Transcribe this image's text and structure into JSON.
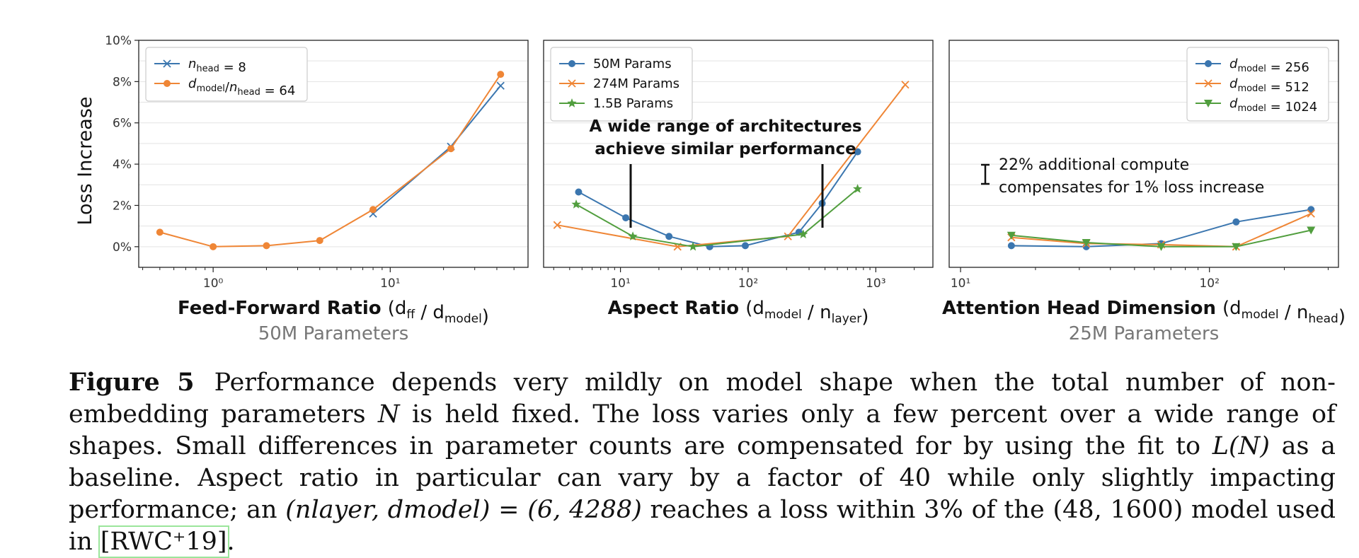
{
  "colors": {
    "blue": "#3b76af",
    "orange": "#ef8636",
    "green": "#519e3e",
    "grid": "#e3e3e3",
    "axis": "#222222"
  },
  "chart_data": [
    {
      "type": "line",
      "xscale": "log",
      "xlim": [
        0.38,
        60
      ],
      "ylim": [
        -1.0,
        10.0
      ],
      "xticks": [
        {
          "v": 1,
          "label": "10⁰"
        },
        {
          "v": 10,
          "label": "10¹"
        }
      ],
      "yticks": [
        {
          "v": 0,
          "label": "0%"
        },
        {
          "v": 2,
          "label": "2%"
        },
        {
          "v": 4,
          "label": "4%"
        },
        {
          "v": 6,
          "label": "6%"
        },
        {
          "v": 8,
          "label": "8%"
        },
        {
          "v": 10,
          "label": "10%"
        }
      ],
      "ylabel": "Loss Increase",
      "xlabel_bold": "Feed-Forward Ratio",
      "xlabel_rest": "(dff / dmodel)",
      "subtitle": "50M Parameters",
      "legend_position": "top-left",
      "series": [
        {
          "legend": "nhead = 8",
          "color": "#3b76af",
          "marker": "x",
          "x": [
            8,
            22,
            42
          ],
          "y": [
            1.6,
            4.85,
            7.8
          ]
        },
        {
          "legend": "dmodel/nhead = 64",
          "color": "#ef8636",
          "marker": "o",
          "x": [
            0.5,
            1,
            2,
            4,
            8,
            22,
            42
          ],
          "y": [
            0.7,
            0.0,
            0.05,
            0.3,
            1.8,
            4.75,
            8.35
          ]
        }
      ]
    },
    {
      "type": "line",
      "xscale": "log",
      "xlim": [
        2.5,
        2800
      ],
      "ylim": [
        -1.0,
        10.0
      ],
      "xticks": [
        {
          "v": 10,
          "label": "10¹"
        },
        {
          "v": 100,
          "label": "10²"
        },
        {
          "v": 1000,
          "label": "10³"
        }
      ],
      "xlabel_bold": "Aspect Ratio",
      "xlabel_rest": "(dmodel / nlayer)",
      "legend_position": "top-left",
      "annotation": [
        "A wide range of architectures",
        "achieve similar performance"
      ],
      "series": [
        {
          "legend": "50M Params",
          "color": "#3b76af",
          "marker": "o",
          "x": [
            4.7,
            11,
            24,
            50,
            95,
            250,
            380,
            720
          ],
          "y": [
            2.65,
            1.4,
            0.5,
            0.0,
            0.05,
            0.7,
            2.1,
            4.6
          ]
        },
        {
          "legend": "274M Params",
          "color": "#ef8636",
          "marker": "x",
          "x": [
            3.2,
            28,
            205,
            1700
          ],
          "y": [
            1.05,
            0.0,
            0.5,
            7.85
          ]
        },
        {
          "legend": "1.5B Params",
          "color": "#519e3e",
          "marker": "*",
          "x": [
            4.5,
            12.5,
            37,
            270,
            720
          ],
          "y": [
            2.05,
            0.5,
            0.0,
            0.6,
            2.8
          ]
        }
      ]
    },
    {
      "type": "line",
      "xscale": "log",
      "xlim": [
        9,
        330
      ],
      "ylim": [
        -1.0,
        10.0
      ],
      "xticks": [
        {
          "v": 10,
          "label": "10¹"
        },
        {
          "v": 100,
          "label": "10²"
        }
      ],
      "xlabel_bold": "Attention Head Dimension",
      "xlabel_rest": "(dmodel / nhead)",
      "subtitle": "25M Parameters",
      "legend_position": "top-right",
      "annotation": [
        "22% additional compute",
        "compensates for 1% loss increase"
      ],
      "series": [
        {
          "legend": "dmodel = 256",
          "color": "#3b76af",
          "marker": "o",
          "x": [
            16,
            32,
            64,
            128,
            256
          ],
          "y": [
            0.05,
            0.0,
            0.15,
            1.2,
            1.8
          ]
        },
        {
          "legend": "dmodel = 512",
          "color": "#ef8636",
          "marker": "x",
          "x": [
            16,
            32,
            64,
            128,
            256
          ],
          "y": [
            0.45,
            0.15,
            0.1,
            0.0,
            1.6
          ]
        },
        {
          "legend": "dmodel = 1024",
          "color": "#519e3e",
          "marker": "v",
          "x": [
            16,
            32,
            64,
            128,
            256
          ],
          "y": [
            0.55,
            0.2,
            0.0,
            0.0,
            0.8
          ]
        }
      ]
    }
  ],
  "caption": {
    "label": "Figure 5",
    "text_1": "Performance depends very mildly on model shape when the total number of non-embedding parameters ",
    "var_n": "N",
    "text_2": " is held fixed. The loss varies only a few percent over a wide range of shapes. Small differences in parameter counts are compensated for by using the fit to ",
    "fit": "L(N)",
    "text_3": " as a baseline. Aspect ratio in particular can vary by a factor of 40 while only slightly impacting performance; an ",
    "tuple": "(nlayer, dmodel) = (6, 4288)",
    "text_4": " reaches a loss within 3% of the ",
    "pair": "(48, 1600)",
    "text_5": " model used in ",
    "citation": "[RWC⁺19]",
    "text_6": "."
  }
}
